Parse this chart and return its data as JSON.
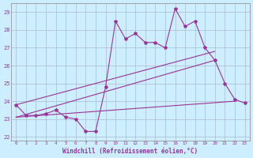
{
  "xlabel": "Windchill (Refroidissement éolien,°C)",
  "bg_color": "#cceeff",
  "grid_color": "#aabbcc",
  "line_color": "#993399",
  "x_ticks": [
    0,
    1,
    2,
    3,
    4,
    5,
    6,
    7,
    8,
    9,
    10,
    11,
    12,
    13,
    14,
    15,
    16,
    17,
    18,
    19,
    20,
    21,
    22,
    23
  ],
  "y_ticks": [
    22,
    23,
    24,
    25,
    26,
    27,
    28,
    29
  ],
  "ylim": [
    21.8,
    29.5
  ],
  "xlim": [
    -0.5,
    23.5
  ],
  "series1": [
    23.8,
    23.2,
    23.2,
    23.3,
    23.5,
    23.1,
    23.0,
    22.3,
    22.3,
    24.8,
    28.5,
    27.5,
    27.8,
    27.3,
    27.3,
    27.0,
    29.2,
    28.2,
    28.5,
    27.0,
    26.3,
    25.0,
    24.1,
    23.9
  ],
  "line2_x": [
    0,
    22
  ],
  "line2_y": [
    23.1,
    24.0
  ],
  "line3_x": [
    0,
    20
  ],
  "line3_y": [
    23.1,
    26.3
  ],
  "line4_x": [
    0,
    20
  ],
  "line4_y": [
    23.8,
    26.8
  ]
}
